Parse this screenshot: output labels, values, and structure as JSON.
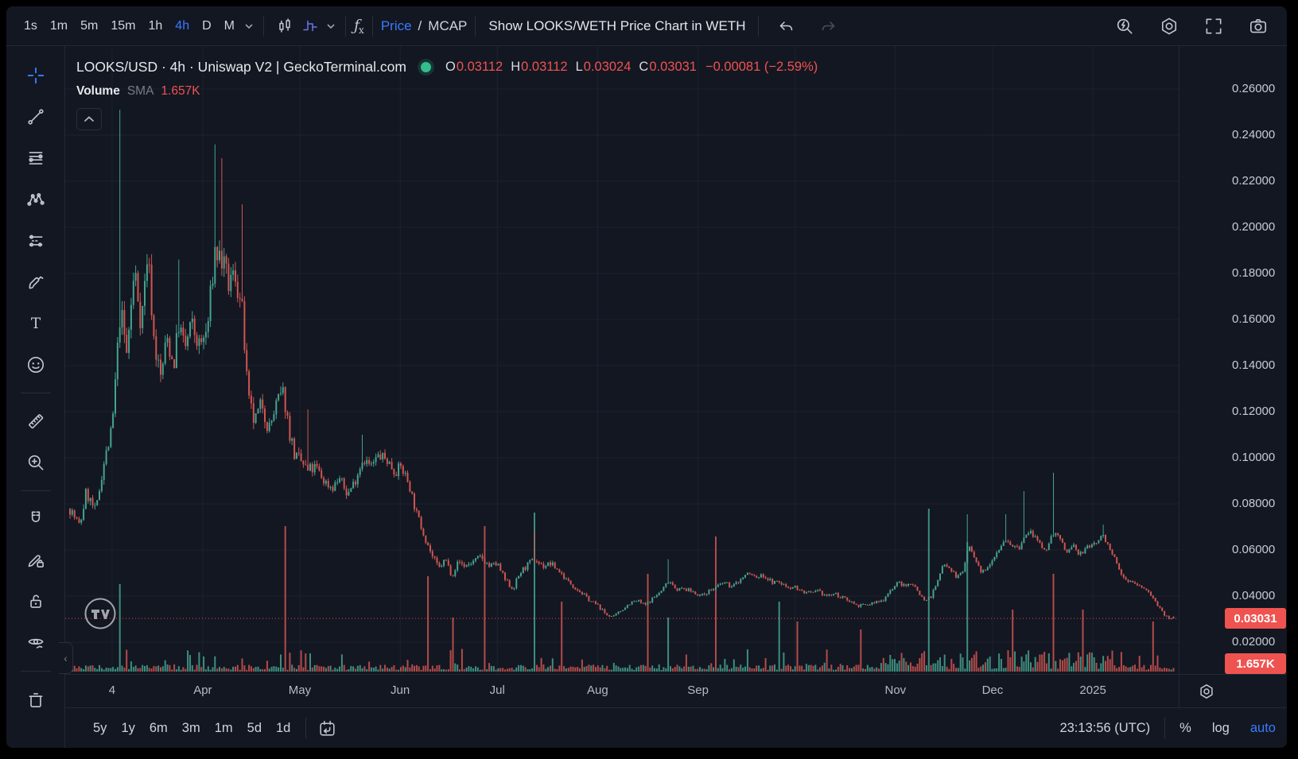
{
  "colors": {
    "accent": "#3a7afe",
    "up": "#45a38f",
    "down": "#d05550",
    "red": "#ef5350",
    "grid": "#1c2230",
    "dot_green": "#34bd8d"
  },
  "top_toolbar": {
    "intervals": [
      "1s",
      "1m",
      "5m",
      "15m",
      "1h",
      "4h",
      "D",
      "M"
    ],
    "active_interval": "4h",
    "indicator_f": "ƒ",
    "indicator_x": "x",
    "price_label": "Price",
    "slash": "/",
    "mcap_label": "MCAP",
    "weth_button": "Show LOOKS/WETH Price Chart in WETH"
  },
  "legend": {
    "series_title": "LOOKS/USD · 4h · Uniswap V2 | GeckoTerminal.com",
    "ohlc": {
      "o_key": "O",
      "o_val": "0.03112",
      "h_key": "H",
      "h_val": "0.03112",
      "l_key": "L",
      "l_val": "0.03024",
      "c_key": "C",
      "c_val": "0.03031",
      "change": "−0.00081 (−2.59%)"
    },
    "volume_label": "Volume",
    "sma_label": "SMA",
    "volume_value": "1.657K"
  },
  "price_scale": {
    "ticks": [
      "0.26000",
      "0.24000",
      "0.22000",
      "0.20000",
      "0.18000",
      "0.16000",
      "0.14000",
      "0.12000",
      "0.10000",
      "0.08000",
      "0.06000",
      "0.04000",
      "0.02000"
    ],
    "last_price_tag": "0.03031",
    "last_volume_tag": "1.657K"
  },
  "time_scale": {
    "ticks": [
      {
        "label": "4",
        "day": 13
      },
      {
        "label": "Apr",
        "day": 41
      },
      {
        "label": "May",
        "day": 71
      },
      {
        "label": "Jun",
        "day": 102
      },
      {
        "label": "Jul",
        "day": 132
      },
      {
        "label": "Aug",
        "day": 163
      },
      {
        "label": "Sep",
        "day": 194
      },
      {
        "label": "",
        "day": 224
      },
      {
        "label": "Nov",
        "day": 255
      },
      {
        "label": "Dec",
        "day": 285
      },
      {
        "label": "2025",
        "day": 316
      }
    ]
  },
  "bottom_toolbar": {
    "ranges": [
      "5y",
      "1y",
      "6m",
      "3m",
      "1m",
      "5d",
      "1d"
    ],
    "clock": "23:13:56 (UTC)",
    "percent_label": "%",
    "log_label": "log",
    "auto_label": "auto"
  },
  "chart_data": {
    "type": "candlestick",
    "symbol": "LOOKS/USD",
    "interval": "4h",
    "venue": "Uniswap V2",
    "source": "GeckoTerminal.com",
    "x_axis": {
      "start_date": "2024-02-20",
      "end_date": "2025-01-26"
    },
    "ylim": [
      0.02,
      0.26
    ],
    "last_candle": {
      "open": 0.03112,
      "high": 0.03112,
      "low": 0.03024,
      "close": 0.03031,
      "change": -0.00081,
      "change_pct": -2.59
    },
    "volume_sma_last": "1.657K",
    "price_keyframes": [
      [
        0,
        0.078
      ],
      [
        3,
        0.07
      ],
      [
        5,
        0.085
      ],
      [
        8,
        0.076
      ],
      [
        10,
        0.095
      ],
      [
        13,
        0.112
      ],
      [
        15.6,
        0.165
      ],
      [
        17.5,
        0.145
      ],
      [
        20,
        0.182
      ],
      [
        22,
        0.158
      ],
      [
        24,
        0.19
      ],
      [
        26,
        0.15
      ],
      [
        28,
        0.135
      ],
      [
        30,
        0.152
      ],
      [
        32,
        0.14
      ],
      [
        33.6,
        0.158
      ],
      [
        35.5,
        0.147
      ],
      [
        37.5,
        0.158
      ],
      [
        40,
        0.148
      ],
      [
        42.4,
        0.155
      ],
      [
        44.8,
        0.19
      ],
      [
        47,
        0.185
      ],
      [
        49,
        0.175
      ],
      [
        51,
        0.18
      ],
      [
        53.3,
        0.162
      ],
      [
        55,
        0.125
      ],
      [
        57,
        0.115
      ],
      [
        59.4,
        0.124
      ],
      [
        61.4,
        0.112
      ],
      [
        64,
        0.124
      ],
      [
        66,
        0.128
      ],
      [
        67.7,
        0.112
      ],
      [
        69.6,
        0.1
      ],
      [
        71.6,
        0.098
      ],
      [
        73.5,
        0.094
      ],
      [
        76,
        0.096
      ],
      [
        78.4,
        0.09
      ],
      [
        81,
        0.087
      ],
      [
        83.3,
        0.091
      ],
      [
        85.7,
        0.084
      ],
      [
        88,
        0.09
      ],
      [
        90.6,
        0.1
      ],
      [
        93,
        0.096
      ],
      [
        95.4,
        0.101
      ],
      [
        98,
        0.099
      ],
      [
        100.3,
        0.094
      ],
      [
        102.3,
        0.096
      ],
      [
        104.7,
        0.089
      ],
      [
        107,
        0.076
      ],
      [
        109.6,
        0.066
      ],
      [
        112,
        0.057
      ],
      [
        114,
        0.052
      ],
      [
        116,
        0.056
      ],
      [
        118,
        0.049
      ],
      [
        120,
        0.055
      ],
      [
        122,
        0.053
      ],
      [
        124.7,
        0.055
      ],
      [
        127,
        0.057
      ],
      [
        129.5,
        0.053
      ],
      [
        132,
        0.054
      ],
      [
        134.4,
        0.047
      ],
      [
        136.8,
        0.043
      ],
      [
        139,
        0.05
      ],
      [
        141,
        0.053
      ],
      [
        143.6,
        0.056
      ],
      [
        146,
        0.053
      ],
      [
        148.5,
        0.054
      ],
      [
        151,
        0.051
      ],
      [
        153.4,
        0.047
      ],
      [
        155.8,
        0.044
      ],
      [
        158.3,
        0.041
      ],
      [
        160.7,
        0.038
      ],
      [
        163,
        0.036
      ],
      [
        165.6,
        0.032
      ],
      [
        168,
        0.031
      ],
      [
        170.4,
        0.034
      ],
      [
        173,
        0.037
      ],
      [
        175.3,
        0.038
      ],
      [
        177.7,
        0.036
      ],
      [
        180,
        0.039
      ],
      [
        182.6,
        0.042
      ],
      [
        185,
        0.047
      ],
      [
        187.5,
        0.043
      ],
      [
        190,
        0.043
      ],
      [
        192.3,
        0.042
      ],
      [
        195,
        0.04
      ],
      [
        197,
        0.042
      ],
      [
        200,
        0.044
      ],
      [
        202,
        0.046
      ],
      [
        204.5,
        0.044
      ],
      [
        207,
        0.047
      ],
      [
        209.4,
        0.05
      ],
      [
        212,
        0.048
      ],
      [
        214,
        0.049
      ],
      [
        217,
        0.046
      ],
      [
        219,
        0.046
      ],
      [
        221.5,
        0.044
      ],
      [
        224,
        0.044
      ],
      [
        226,
        0.042
      ],
      [
        229,
        0.041
      ],
      [
        231,
        0.042
      ],
      [
        234,
        0.04
      ],
      [
        236,
        0.041
      ],
      [
        239,
        0.039
      ],
      [
        241,
        0.038
      ],
      [
        243,
        0.036
      ],
      [
        246,
        0.036
      ],
      [
        248,
        0.037
      ],
      [
        251,
        0.038
      ],
      [
        253,
        0.042
      ],
      [
        256,
        0.046
      ],
      [
        258,
        0.044
      ],
      [
        260,
        0.046
      ],
      [
        262,
        0.042
      ],
      [
        264,
        0.038
      ],
      [
        266,
        0.04
      ],
      [
        268,
        0.046
      ],
      [
        270,
        0.055
      ],
      [
        272,
        0.052
      ],
      [
        274,
        0.048
      ],
      [
        276,
        0.051
      ],
      [
        277.5,
        0.062
      ],
      [
        279.5,
        0.056
      ],
      [
        281.4,
        0.05
      ],
      [
        283.4,
        0.053
      ],
      [
        285.3,
        0.057
      ],
      [
        287,
        0.061
      ],
      [
        289.2,
        0.065
      ],
      [
        291,
        0.062
      ],
      [
        293,
        0.06
      ],
      [
        295,
        0.066
      ],
      [
        297,
        0.068
      ],
      [
        299,
        0.063
      ],
      [
        301,
        0.059
      ],
      [
        303,
        0.065
      ],
      [
        304,
        0.068
      ],
      [
        306,
        0.064
      ],
      [
        308,
        0.059
      ],
      [
        310,
        0.062
      ],
      [
        311.6,
        0.058
      ],
      [
        313.5,
        0.06
      ],
      [
        315.4,
        0.062
      ],
      [
        317.4,
        0.064
      ],
      [
        319.3,
        0.066
      ],
      [
        321.3,
        0.061
      ],
      [
        323.2,
        0.054
      ],
      [
        325.2,
        0.048
      ],
      [
        327,
        0.047
      ],
      [
        329,
        0.045
      ],
      [
        331,
        0.044
      ],
      [
        333,
        0.042
      ],
      [
        335,
        0.039
      ],
      [
        336.5,
        0.035
      ],
      [
        338,
        0.0315
      ],
      [
        339.5,
        0.0303
      ],
      [
        341.5,
        0.0303
      ]
    ],
    "wick_spikes": [
      [
        15.6,
        0.251
      ],
      [
        33.6,
        0.186
      ],
      [
        44.8,
        0.236
      ],
      [
        47,
        0.23
      ],
      [
        53.3,
        0.21
      ],
      [
        73.5,
        0.121
      ],
      [
        90.6,
        0.11
      ],
      [
        143.6,
        0.068
      ],
      [
        185,
        0.056
      ],
      [
        277.5,
        0.0755
      ],
      [
        289.2,
        0.0755
      ],
      [
        295,
        0.0855
      ],
      [
        304,
        0.0935
      ],
      [
        319.3,
        0.071
      ]
    ],
    "volume_spikes": [
      [
        15.6,
        110,
        "g"
      ],
      [
        66.5,
        183,
        "r"
      ],
      [
        110.5,
        120,
        "r"
      ],
      [
        118,
        68,
        "r"
      ],
      [
        127.8,
        183,
        "r"
      ],
      [
        143.4,
        200,
        "g"
      ],
      [
        152,
        88,
        "r"
      ],
      [
        178.2,
        123,
        "r"
      ],
      [
        184.6,
        68,
        "g"
      ],
      [
        199.6,
        170,
        "r"
      ],
      [
        219.1,
        88,
        "g"
      ],
      [
        224.5,
        63,
        "r"
      ],
      [
        244,
        53,
        "r"
      ],
      [
        265.4,
        205,
        "g"
      ],
      [
        277.1,
        163,
        "g"
      ],
      [
        290.9,
        78,
        "r"
      ],
      [
        303.6,
        123,
        "r"
      ],
      [
        313.1,
        78,
        "r"
      ],
      [
        334.5,
        63,
        "r"
      ]
    ]
  }
}
